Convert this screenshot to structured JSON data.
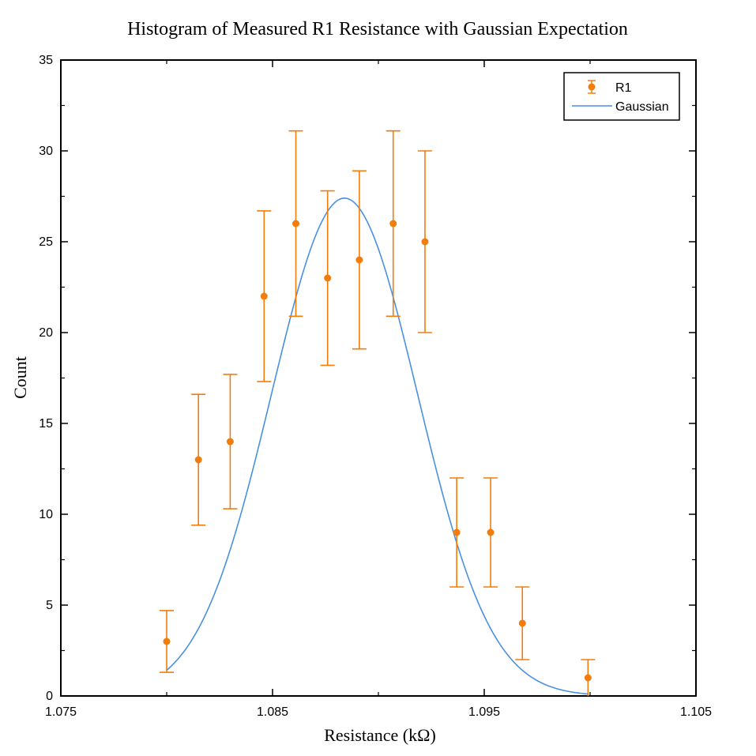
{
  "colors": {
    "points": "#f27d0c",
    "curve": "#4a90e2",
    "axis": "#000000",
    "background": "#ffffff"
  },
  "chart_data": {
    "type": "scatter",
    "title": "Histogram of Measured R1 Resistance with Gaussian Expectation",
    "xlabel": "Resistance (kΩ)",
    "ylabel": "Count",
    "xlim": [
      1.075,
      1.105
    ],
    "ylim": [
      0,
      35
    ],
    "x_ticks": [
      1.075,
      1.085,
      1.095,
      1.105
    ],
    "x_tick_labels": [
      "1.075",
      "1.085",
      "1.095",
      "1.105"
    ],
    "y_ticks": [
      0,
      5,
      10,
      15,
      20,
      25,
      30,
      35
    ],
    "y_tick_labels": [
      "0",
      "5",
      "10",
      "15",
      "20",
      "25",
      "30",
      "35"
    ],
    "grid": false,
    "legend_position": "top-right",
    "series": [
      {
        "name": "R1",
        "kind": "errorbar",
        "x": [
          1.08,
          1.0815,
          1.083,
          1.0846,
          1.0861,
          1.0876,
          1.0891,
          1.0907,
          1.0922,
          1.0937,
          1.0953,
          1.0968,
          1.0999
        ],
        "y": [
          3,
          13,
          14,
          22,
          26,
          23,
          24,
          26,
          25,
          9,
          9,
          4,
          1
        ],
        "yerr_low": [
          1.7,
          3.6,
          3.7,
          4.7,
          5.1,
          4.8,
          4.9,
          5.1,
          5.0,
          3.0,
          3.0,
          2.0,
          1.0
        ],
        "yerr_high": [
          1.7,
          3.6,
          3.7,
          4.7,
          5.1,
          4.8,
          4.9,
          5.1,
          5.0,
          3.0,
          3.0,
          2.0,
          1.0
        ]
      },
      {
        "name": "Gaussian",
        "kind": "line",
        "mean": 1.0884,
        "sigma": 0.00345,
        "amplitude": 27.4,
        "x_range": [
          1.08,
          1.0999
        ]
      }
    ]
  }
}
